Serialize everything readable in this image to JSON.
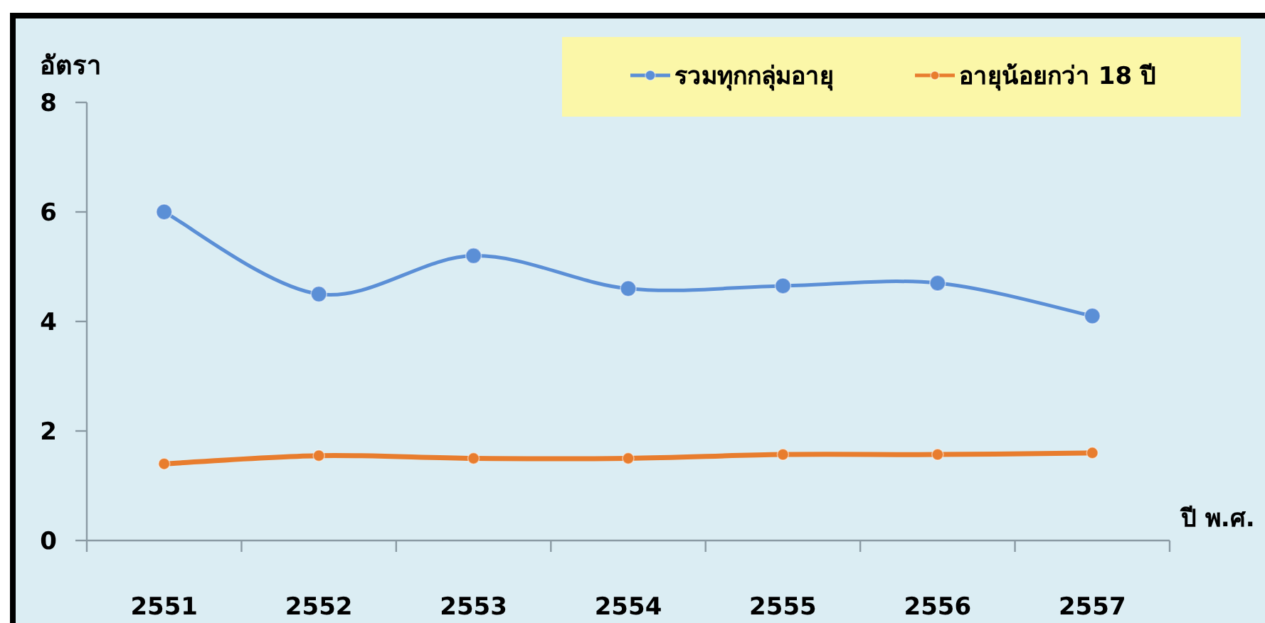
{
  "chart_data": {
    "type": "line",
    "ylabel": "อัตรา",
    "xlabel": "ปี พ.ศ.",
    "categories": [
      "2551",
      "2552",
      "2553",
      "2554",
      "2555",
      "2556",
      "2557"
    ],
    "series": [
      {
        "name": "รวมทุกกลุ่มอายุ",
        "color": "#5b8fd6",
        "values": [
          6.0,
          4.5,
          5.2,
          4.6,
          4.65,
          4.7,
          4.1
        ]
      },
      {
        "name": "อายุน้อยกว่า 18 ปี",
        "color": "#e87d2e",
        "values": [
          1.4,
          1.55,
          1.5,
          1.5,
          1.57,
          1.57,
          1.6
        ]
      }
    ],
    "ylim": [
      0,
      8
    ],
    "yticks": [
      0,
      2,
      4,
      6,
      8
    ],
    "marker": "circle",
    "legend": "top right",
    "grid": false
  }
}
